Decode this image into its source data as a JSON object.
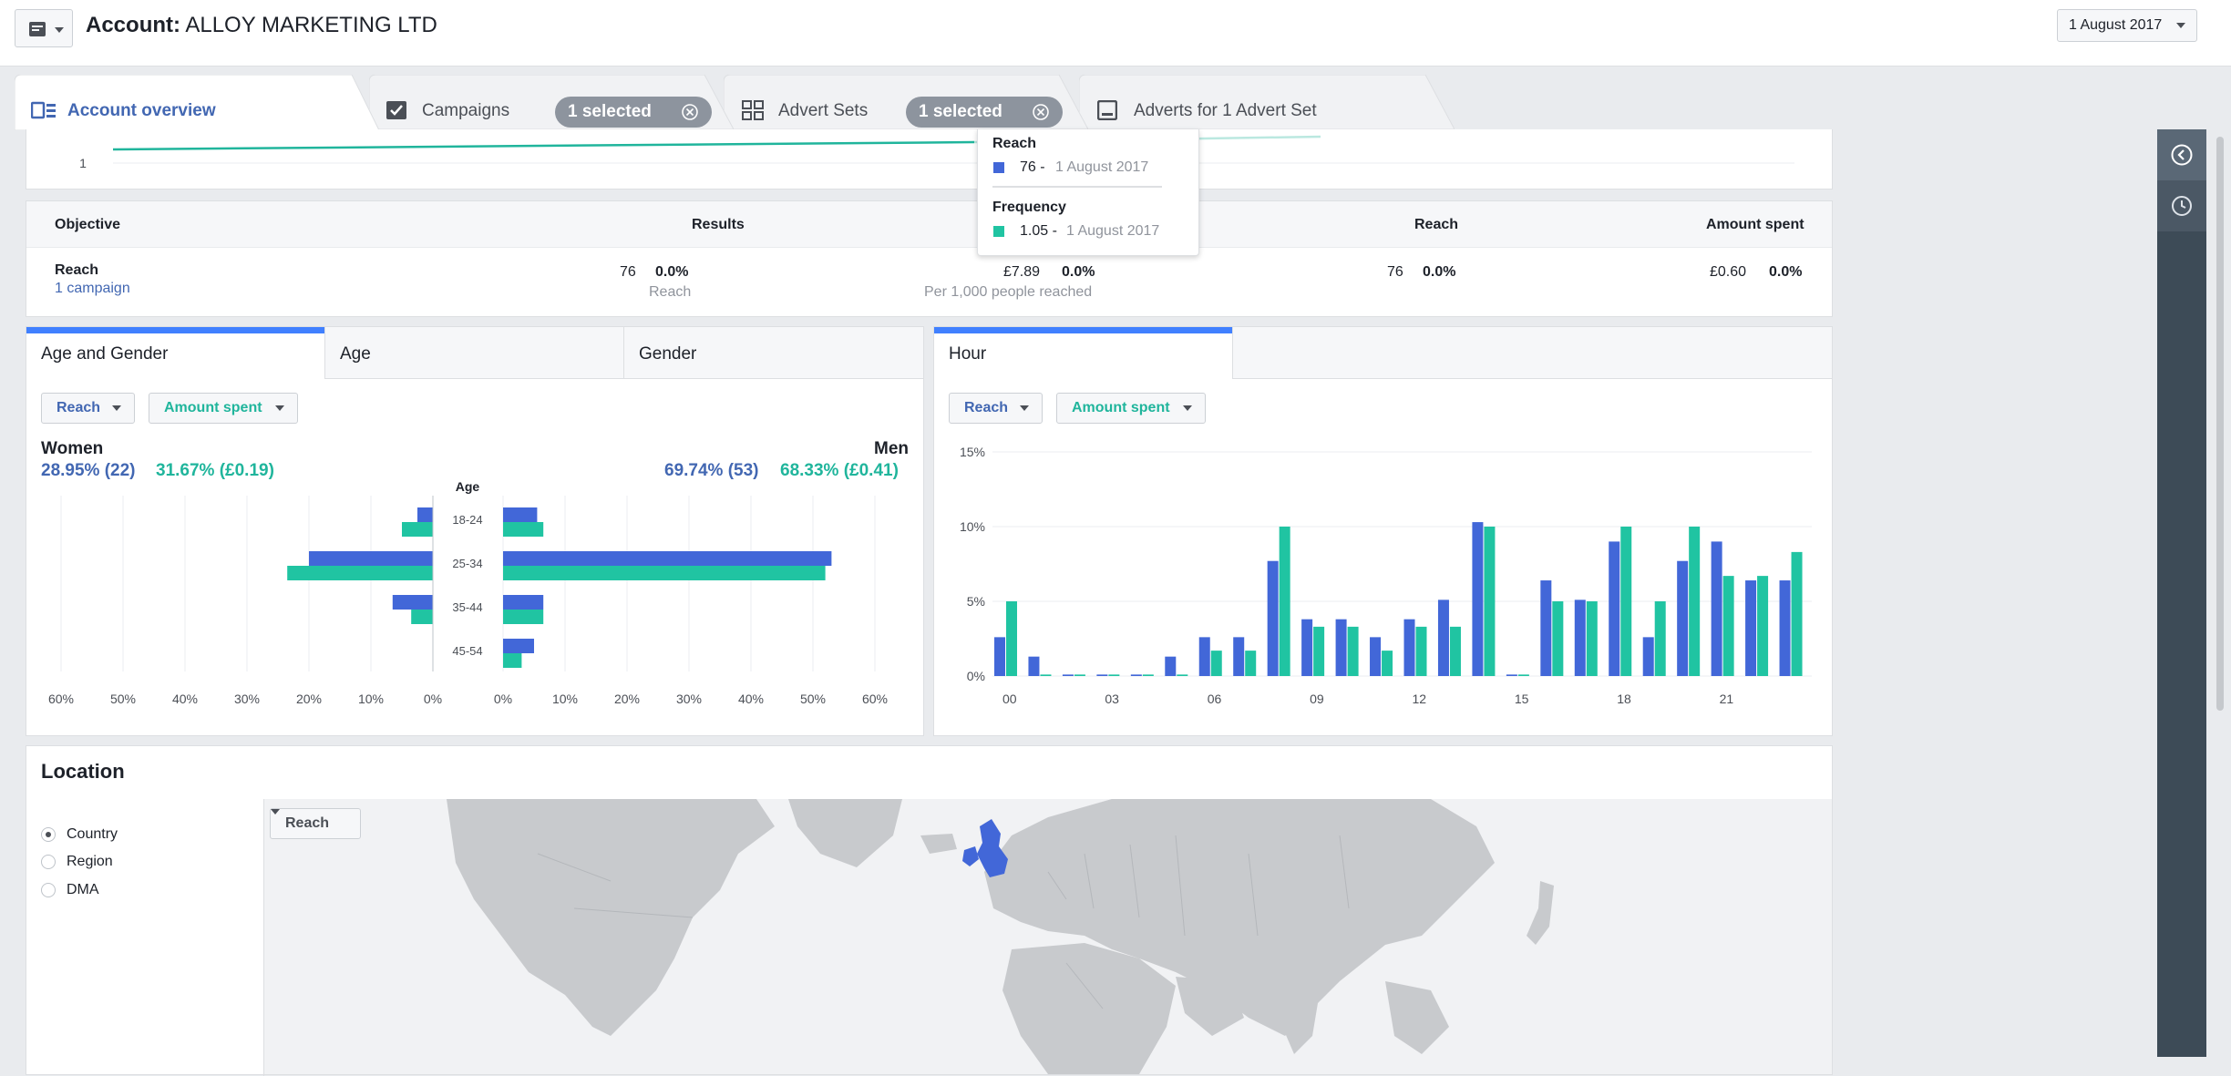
{
  "header": {
    "account_label": "Account:",
    "account_name": "ALLOY MARKETING LTD",
    "date": "1 August 2017"
  },
  "tabs": [
    {
      "label": "Account overview",
      "icon": "account-overview-icon"
    },
    {
      "label": "Campaigns",
      "icon": "checkbox-icon",
      "selected": "1 selected"
    },
    {
      "label": "Advert Sets",
      "icon": "grid-icon",
      "selected": "1 selected"
    },
    {
      "label": "Adverts for 1 Advert Set",
      "icon": "advert-icon"
    }
  ],
  "trend": {
    "y_tick": "1"
  },
  "tooltip": {
    "reach_title": "Reach",
    "reach_value": "76 -",
    "reach_date": "1 August 2017",
    "frequency_title": "Frequency",
    "frequency_value": "1.05 -",
    "frequency_date": "1 August 2017"
  },
  "summary": {
    "headers": {
      "objective": "Objective",
      "results": "Results",
      "reach": "Reach",
      "amount_spent": "Amount spent"
    },
    "row": {
      "objective": "Reach",
      "objective_sub": "1 campaign",
      "results_value": "76",
      "results_change": "0.0%",
      "results_sub": "Reach",
      "cost_value": "£7.89",
      "cost_change": "0.0%",
      "cost_sub": "Per 1,000 people reached",
      "reach_value": "76",
      "reach_change": "0.0%",
      "spent_value": "£0.60",
      "spent_change": "0.0%"
    }
  },
  "demographics": {
    "tabs": [
      "Age and Gender",
      "Age",
      "Gender"
    ],
    "metric1": "Reach",
    "metric2": "Amount spent",
    "women_label": "Women",
    "women_reach": "28.95% (22)",
    "women_spent": "31.67% (£0.19)",
    "men_label": "Men",
    "men_reach": "69.74% (53)",
    "men_spent": "68.33% (£0.41)",
    "colors": {
      "reach": "#4267d8",
      "spent": "#20c4a2"
    }
  },
  "hour_panel": {
    "tabs": [
      "Hour"
    ],
    "metric1": "Reach",
    "metric2": "Amount spent"
  },
  "location": {
    "title": "Location",
    "options": [
      "Country",
      "Region",
      "DMA"
    ],
    "selected": "Country",
    "metric": "Reach",
    "highlighted_country": "United Kingdom",
    "highlight_color": "#4267d8"
  },
  "chart_data": [
    {
      "type": "bar",
      "orientation": "horizontal-pyramid",
      "title": "",
      "category_label": "Age",
      "categories": [
        "18-24",
        "25-34",
        "35-44",
        "45-54"
      ],
      "series": [
        {
          "name": "Women",
          "metric": "Reach",
          "values": [
            2.5,
            20,
            6.5,
            0
          ]
        },
        {
          "name": "Women",
          "metric": "Amount spent",
          "values": [
            5,
            23.5,
            3.5,
            0
          ]
        },
        {
          "name": "Men",
          "metric": "Reach",
          "values": [
            5.5,
            53,
            6.5,
            5
          ]
        },
        {
          "name": "Men",
          "metric": "Amount spent",
          "values": [
            6.5,
            52,
            6.5,
            3
          ]
        }
      ],
      "x_ticks": [
        "60%",
        "50%",
        "40%",
        "30%",
        "20%",
        "10%",
        "0%",
        "0%",
        "10%",
        "20%",
        "30%",
        "40%",
        "50%",
        "60%"
      ],
      "xlim": [
        0,
        60
      ],
      "grid": true
    },
    {
      "type": "bar",
      "title": "",
      "x": [
        0,
        1,
        2,
        3,
        4,
        5,
        6,
        7,
        8,
        9,
        10,
        11,
        12,
        13,
        14,
        15,
        16,
        17,
        18,
        19,
        20,
        21,
        22,
        23
      ],
      "x_ticks": [
        "00",
        "03",
        "06",
        "09",
        "12",
        "15",
        "18",
        "21"
      ],
      "y_ticks": [
        "0%",
        "5%",
        "10%",
        "15%"
      ],
      "ylim": [
        0,
        15
      ],
      "series": [
        {
          "name": "Reach",
          "values": [
            2.6,
            1.3,
            0.1,
            0.1,
            0.1,
            1.3,
            2.6,
            2.6,
            7.7,
            3.8,
            3.8,
            2.6,
            3.8,
            5.1,
            10.3,
            0.1,
            6.4,
            5.1,
            9.0,
            2.6,
            7.7,
            9.0,
            6.4,
            6.4
          ]
        },
        {
          "name": "Amount spent",
          "values": [
            5.0,
            0.1,
            0.1,
            0.1,
            0.1,
            0.1,
            1.7,
            1.7,
            10.0,
            3.3,
            3.3,
            1.7,
            3.3,
            3.3,
            10.0,
            0.1,
            5.0,
            5.0,
            10.0,
            5.0,
            10.0,
            6.7,
            6.7,
            8.3
          ]
        }
      ],
      "grid": true
    }
  ]
}
